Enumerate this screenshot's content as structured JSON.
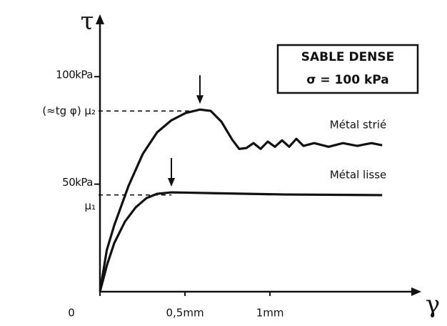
{
  "chart_data": {
    "type": "line",
    "x_label": "γ",
    "y_label": "τ",
    "xlim": [
      0,
      1.89
    ],
    "ylim": [
      0,
      129
    ],
    "xticks": [
      0,
      {
        "value": 0.5,
        "label": "0,5mm"
      },
      {
        "value": 1,
        "label": "1mm"
      }
    ],
    "yticks": [
      {
        "value": 50,
        "label": "50kPa"
      },
      {
        "value": 100,
        "label": "100kPa"
      }
    ],
    "reference_lines": [
      {
        "label": "(≈tg φ) μ₂",
        "value": 84
      },
      {
        "label": "μ₁",
        "value": 45
      }
    ],
    "annotation_box": [
      "SABLE DENSE",
      "σ = 100 kPa"
    ],
    "series": [
      {
        "name": "Métal strié",
        "color": "#111111",
        "x": [
          0,
          0.04,
          0.084,
          0.168,
          0.252,
          0.336,
          0.42,
          0.504,
          0.588,
          0.651,
          0.714,
          0.777,
          0.819,
          0.861,
          0.903,
          0.945,
          0.987,
          1.029,
          1.071,
          1.113,
          1.155,
          1.197,
          1.26,
          1.345,
          1.429,
          1.513,
          1.597,
          1.66
        ],
        "values": [
          0,
          19.3,
          30.9,
          49.2,
          64.1,
          74.1,
          79.7,
          83.1,
          84.7,
          84.1,
          79.1,
          70.8,
          66.4,
          66.8,
          69.1,
          66.4,
          69.8,
          67.4,
          70.4,
          67.4,
          71.1,
          67.8,
          69.1,
          67.4,
          69.1,
          67.8,
          69.1,
          68.1
        ]
      },
      {
        "name": "Métal lisse",
        "color": "#111111",
        "x": [
          0,
          0.042,
          0.084,
          0.147,
          0.21,
          0.273,
          0.336,
          0.42,
          0.672,
          1.092,
          1.66
        ],
        "values": [
          0,
          12.6,
          22.6,
          32.6,
          39.2,
          43.5,
          45.5,
          46.2,
          45.8,
          45.2,
          44.9
        ]
      }
    ]
  }
}
